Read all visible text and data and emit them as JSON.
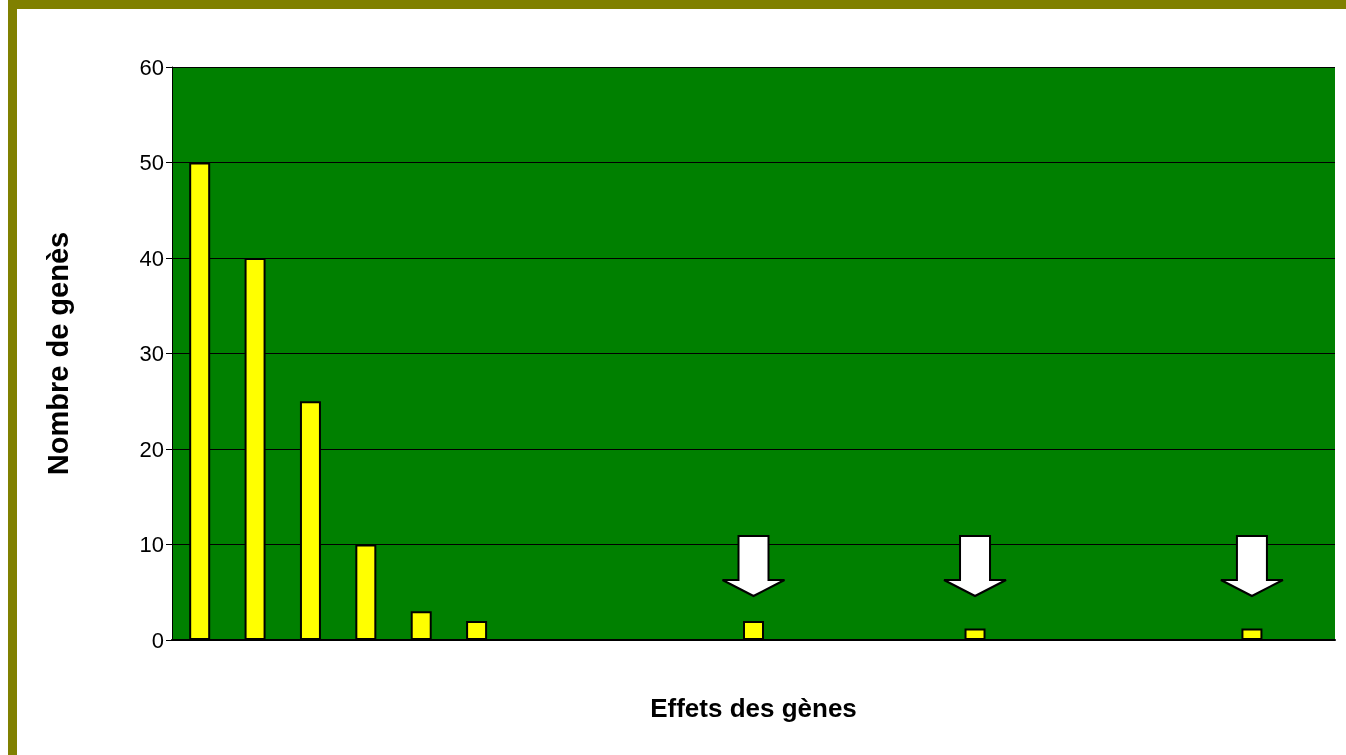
{
  "chart_data": {
    "type": "bar",
    "xlabel": "Effets des gènes",
    "ylabel": "Nombre de genès",
    "categories": [
      null,
      null,
      null,
      null,
      null,
      null,
      null,
      null,
      null,
      null,
      null,
      null,
      null,
      null,
      null,
      null,
      null,
      null,
      null,
      null,
      null
    ],
    "values": [
      50,
      40,
      25,
      10,
      3,
      2,
      null,
      null,
      null,
      null,
      2,
      null,
      null,
      null,
      1.2,
      null,
      null,
      null,
      null,
      1.2,
      null
    ],
    "color": "#ffff00",
    "ylim": [
      0,
      60
    ],
    "yticks": [
      0,
      10,
      20,
      30,
      40,
      50,
      60
    ],
    "grid": "y"
  }
}
